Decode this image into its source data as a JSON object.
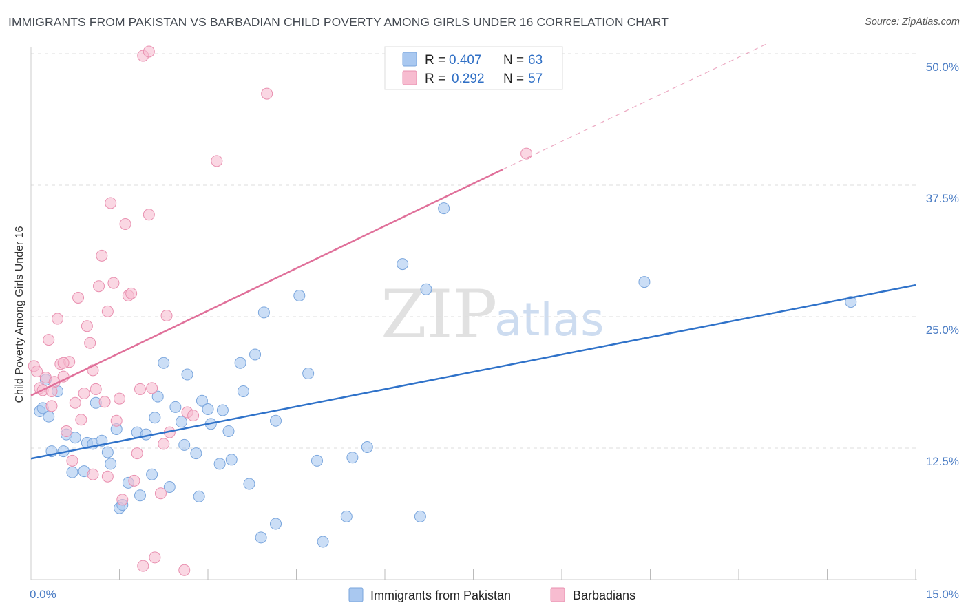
{
  "title": "IMMIGRANTS FROM PAKISTAN VS BARBADIAN CHILD POVERTY AMONG GIRLS UNDER 16 CORRELATION CHART",
  "source": "Source: ZipAtlas.com",
  "watermark": {
    "zip": "ZIP",
    "atlas": "atlas"
  },
  "colors": {
    "blue_fill": "#a9c8f0",
    "blue_stroke": "#7aa6dd",
    "blue_line": "#2f72c9",
    "pink_fill": "#f7bcd0",
    "pink_stroke": "#e990b0",
    "pink_line": "#e0709a",
    "grid": "#dddddd",
    "tick_text": "#4a7cc4"
  },
  "legend": {
    "rows": [
      {
        "r_label": "R = ",
        "r_value": "0.407",
        "n_label": "N = ",
        "n_value": "63"
      },
      {
        "r_label": "R = ",
        "r_value": "0.292",
        "n_label": "N = ",
        "n_value": "57"
      }
    ]
  },
  "chart_data": {
    "type": "scatter",
    "title": "IMMIGRANTS FROM PAKISTAN VS BARBADIAN CHILD POVERTY AMONG GIRLS UNDER 16 CORRELATION CHART",
    "xlabel": "",
    "ylabel": "Child Poverty Among Girls Under 16",
    "xlim": [
      0,
      15
    ],
    "ylim": [
      0,
      50
    ],
    "x_tick_labels": [
      "0.0%",
      "15.0%"
    ],
    "y_ticks": [
      12.5,
      25.0,
      37.5,
      50.0
    ],
    "y_tick_labels": [
      "12.5%",
      "25.0%",
      "37.5%",
      "50.0%"
    ],
    "grid": true,
    "legend_position": "top-center",
    "series": [
      {
        "name": "Immigrants from Pakistan",
        "color": "#a9c8f0",
        "trend": {
          "x": [
            0,
            15
          ],
          "y": [
            11.5,
            28.0
          ]
        },
        "points": [
          [
            0.15,
            16.0
          ],
          [
            0.3,
            15.5
          ],
          [
            0.25,
            19.0
          ],
          [
            0.45,
            17.9
          ],
          [
            0.35,
            12.2
          ],
          [
            0.55,
            12.2
          ],
          [
            0.6,
            13.8
          ],
          [
            0.75,
            13.5
          ],
          [
            0.7,
            10.2
          ],
          [
            0.9,
            10.3
          ],
          [
            0.95,
            13.0
          ],
          [
            1.05,
            12.9
          ],
          [
            1.1,
            16.8
          ],
          [
            1.2,
            13.2
          ],
          [
            1.3,
            12.1
          ],
          [
            1.35,
            11.0
          ],
          [
            1.45,
            14.3
          ],
          [
            1.5,
            6.8
          ],
          [
            1.55,
            7.1
          ],
          [
            1.65,
            9.2
          ],
          [
            1.8,
            14.0
          ],
          [
            1.85,
            8.0
          ],
          [
            1.95,
            13.8
          ],
          [
            2.05,
            10.0
          ],
          [
            2.1,
            15.4
          ],
          [
            2.15,
            17.4
          ],
          [
            2.25,
            20.6
          ],
          [
            2.35,
            8.8
          ],
          [
            2.45,
            16.4
          ],
          [
            2.55,
            15.0
          ],
          [
            2.6,
            12.8
          ],
          [
            2.65,
            19.5
          ],
          [
            2.8,
            12.0
          ],
          [
            2.85,
            7.9
          ],
          [
            2.9,
            17.0
          ],
          [
            3.0,
            16.2
          ],
          [
            3.05,
            14.8
          ],
          [
            3.2,
            11.0
          ],
          [
            3.25,
            16.1
          ],
          [
            3.35,
            14.1
          ],
          [
            3.4,
            11.4
          ],
          [
            3.55,
            20.6
          ],
          [
            3.6,
            17.9
          ],
          [
            3.7,
            9.1
          ],
          [
            3.8,
            21.4
          ],
          [
            3.9,
            4.0
          ],
          [
            3.95,
            25.4
          ],
          [
            4.15,
            5.3
          ],
          [
            4.15,
            15.1
          ],
          [
            4.55,
            27.0
          ],
          [
            4.7,
            19.6
          ],
          [
            4.85,
            11.3
          ],
          [
            4.95,
            3.6
          ],
          [
            5.35,
            6.0
          ],
          [
            5.45,
            11.6
          ],
          [
            5.7,
            12.6
          ],
          [
            6.3,
            30.0
          ],
          [
            6.6,
            6.0
          ],
          [
            6.7,
            27.6
          ],
          [
            7.0,
            35.3
          ],
          [
            10.4,
            28.3
          ],
          [
            13.9,
            26.4
          ],
          [
            0.2,
            16.3
          ]
        ]
      },
      {
        "name": "Barbadians",
        "color": "#f7bcd0",
        "trend": {
          "x": [
            0,
            8.0
          ],
          "y": [
            17.5,
            39.0
          ]
        },
        "trend_dashed": {
          "x": [
            8.0,
            12.5
          ],
          "y": [
            39.0,
            51.0
          ]
        },
        "points": [
          [
            0.05,
            20.3
          ],
          [
            0.1,
            19.8
          ],
          [
            0.15,
            18.2
          ],
          [
            0.2,
            18.0
          ],
          [
            0.25,
            19.2
          ],
          [
            0.3,
            22.8
          ],
          [
            0.35,
            16.5
          ],
          [
            0.4,
            18.8
          ],
          [
            0.45,
            24.8
          ],
          [
            0.5,
            20.5
          ],
          [
            0.55,
            19.3
          ],
          [
            0.6,
            14.1
          ],
          [
            0.65,
            20.7
          ],
          [
            0.7,
            11.3
          ],
          [
            0.75,
            16.8
          ],
          [
            0.8,
            26.8
          ],
          [
            0.85,
            15.2
          ],
          [
            0.9,
            17.7
          ],
          [
            0.95,
            24.1
          ],
          [
            1.0,
            22.5
          ],
          [
            1.05,
            19.9
          ],
          [
            1.1,
            18.1
          ],
          [
            1.15,
            27.9
          ],
          [
            1.2,
            30.8
          ],
          [
            1.25,
            16.9
          ],
          [
            1.3,
            25.5
          ],
          [
            1.35,
            35.8
          ],
          [
            1.4,
            28.2
          ],
          [
            1.45,
            15.1
          ],
          [
            1.5,
            17.2
          ],
          [
            1.55,
            7.6
          ],
          [
            1.6,
            33.8
          ],
          [
            1.65,
            27.0
          ],
          [
            1.7,
            27.2
          ],
          [
            1.75,
            9.4
          ],
          [
            1.8,
            12.0
          ],
          [
            1.85,
            18.1
          ],
          [
            1.9,
            1.3
          ],
          [
            2.0,
            34.7
          ],
          [
            2.05,
            18.2
          ],
          [
            2.1,
            2.1
          ],
          [
            2.2,
            8.2
          ],
          [
            2.25,
            12.9
          ],
          [
            2.3,
            25.1
          ],
          [
            2.35,
            14.0
          ],
          [
            2.6,
            0.9
          ],
          [
            2.65,
            15.9
          ],
          [
            2.75,
            15.6
          ],
          [
            1.9,
            49.8
          ],
          [
            2.0,
            50.2
          ],
          [
            3.15,
            39.8
          ],
          [
            4.0,
            46.2
          ],
          [
            8.4,
            40.5
          ],
          [
            0.55,
            20.6
          ],
          [
            1.3,
            9.8
          ],
          [
            0.35,
            17.9
          ],
          [
            1.05,
            10.0
          ]
        ]
      }
    ]
  }
}
